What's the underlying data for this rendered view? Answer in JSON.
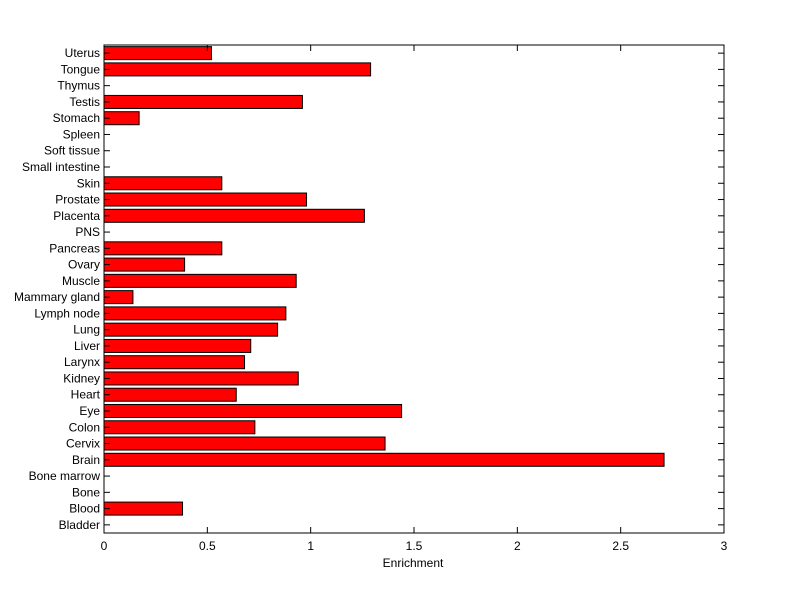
{
  "chart_data": {
    "type": "bar",
    "orientation": "horizontal",
    "title": "",
    "xlabel": "Enrichment",
    "ylabel": "",
    "xlim": [
      0,
      3
    ],
    "xticks": [
      0,
      0.5,
      1,
      1.5,
      2,
      2.5,
      3
    ],
    "xtick_labels": [
      "0",
      "0.5",
      "1",
      "1.5",
      "2",
      "2.5",
      "3"
    ],
    "grid": false,
    "legend": "none",
    "bar_color": "#ff0000",
    "bar_edge_color": "#000000",
    "categories": [
      "Bladder",
      "Blood",
      "Bone",
      "Bone marrow",
      "Brain",
      "Cervix",
      "Colon",
      "Eye",
      "Heart",
      "Kidney",
      "Larynx",
      "Liver",
      "Lung",
      "Lymph node",
      "Mammary gland",
      "Muscle",
      "Ovary",
      "Pancreas",
      "PNS",
      "Placenta",
      "Prostate",
      "Skin",
      "Small intestine",
      "Soft tissue",
      "Spleen",
      "Stomach",
      "Testis",
      "Thymus",
      "Tongue",
      "Uterus"
    ],
    "values": [
      0,
      0.38,
      0,
      0,
      2.71,
      1.36,
      0.73,
      1.44,
      0.64,
      0.94,
      0.68,
      0.71,
      0.84,
      0.88,
      0.14,
      0.93,
      0.39,
      0.57,
      0,
      1.26,
      0.98,
      0.57,
      0,
      0,
      0,
      0.17,
      0.96,
      0,
      1.29,
      0.52
    ]
  }
}
